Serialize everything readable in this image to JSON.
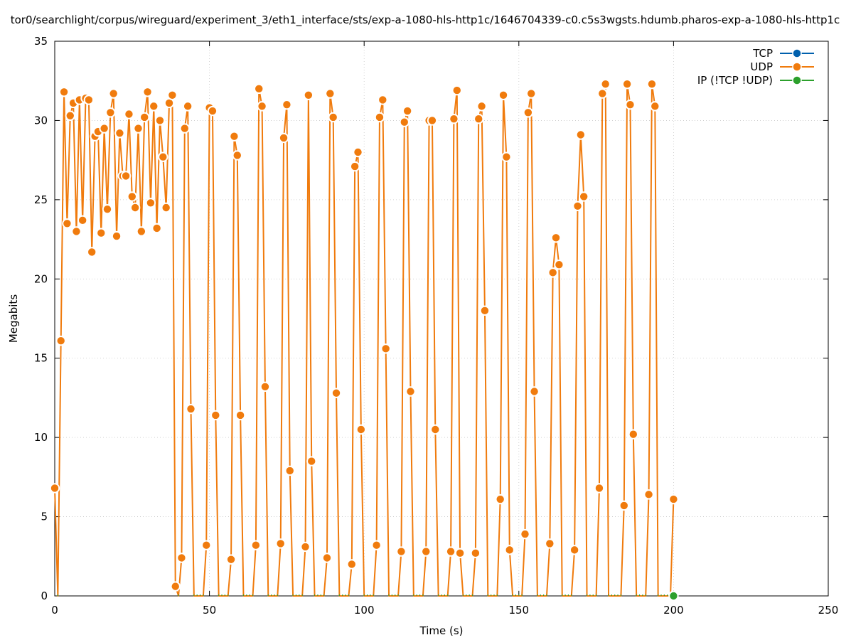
{
  "chart_data": {
    "type": "line",
    "title": "tor0/searchlight/corpus/wireguard/experiment_3/eth1_interface/sts/exp-a-1080-hls-http1c/1646704339-c0.c5s3wgsts.hdumb.pharos-exp-a-1080-hls-http1c",
    "xlabel": "Time (s)",
    "ylabel": "Megabits",
    "xlim": [
      0,
      250
    ],
    "ylim": [
      0,
      35
    ],
    "xticks": [
      0,
      50,
      100,
      150,
      200,
      250
    ],
    "yticks": [
      0,
      5,
      10,
      15,
      20,
      25,
      30,
      35
    ],
    "grid": true,
    "legend_position": "top-right",
    "series": [
      {
        "name": "TCP",
        "color": "#0060ad",
        "points": []
      },
      {
        "name": "UDP",
        "color": "#f07b0d",
        "points": [
          [
            0,
            6.8
          ],
          [
            1,
            0
          ],
          [
            2,
            16.1
          ],
          [
            3,
            31.8
          ],
          [
            4,
            23.5
          ],
          [
            5,
            30.3
          ],
          [
            6,
            31.1
          ],
          [
            7,
            23
          ],
          [
            8,
            31.3
          ],
          [
            9,
            23.7
          ],
          [
            10,
            31.4
          ],
          [
            11,
            31.3
          ],
          [
            12,
            21.7
          ],
          [
            13,
            29
          ],
          [
            14,
            29.3
          ],
          [
            15,
            22.9
          ],
          [
            16,
            29.5
          ],
          [
            17,
            24.4
          ],
          [
            18,
            30.5
          ],
          [
            19,
            31.7
          ],
          [
            20,
            22.7
          ],
          [
            21,
            29.2
          ],
          [
            22,
            26.5
          ],
          [
            23,
            26.5
          ],
          [
            24,
            30.4
          ],
          [
            25,
            25.2
          ],
          [
            26,
            24.5
          ],
          [
            27,
            29.5
          ],
          [
            28,
            23
          ],
          [
            29,
            30.2
          ],
          [
            30,
            31.8
          ],
          [
            31,
            24.8
          ],
          [
            32,
            30.9
          ],
          [
            33,
            23.2
          ],
          [
            34,
            30
          ],
          [
            35,
            27.7
          ],
          [
            36,
            24.5
          ],
          [
            37,
            31.1
          ],
          [
            38,
            31.6
          ],
          [
            39,
            0.6
          ],
          [
            40,
            0
          ],
          [
            41,
            2.4
          ],
          [
            42,
            29.5
          ],
          [
            43,
            30.9
          ],
          [
            44,
            11.8
          ],
          [
            45,
            0
          ],
          [
            46,
            0
          ],
          [
            47,
            0
          ],
          [
            48,
            0
          ],
          [
            49,
            3.2
          ],
          [
            50,
            30.8
          ],
          [
            51,
            30.6
          ],
          [
            52,
            11.4
          ],
          [
            53,
            0
          ],
          [
            54,
            0
          ],
          [
            55,
            0
          ],
          [
            56,
            0
          ],
          [
            57,
            2.3
          ],
          [
            58,
            29
          ],
          [
            59,
            27.8
          ],
          [
            60,
            11.4
          ],
          [
            61,
            0
          ],
          [
            62,
            0
          ],
          [
            63,
            0
          ],
          [
            64,
            0
          ],
          [
            65,
            3.2
          ],
          [
            66,
            32
          ],
          [
            67,
            30.9
          ],
          [
            68,
            13.2
          ],
          [
            69,
            0
          ],
          [
            70,
            0
          ],
          [
            71,
            0
          ],
          [
            72,
            0
          ],
          [
            73,
            3.3
          ],
          [
            74,
            28.9
          ],
          [
            75,
            31
          ],
          [
            76,
            7.9
          ],
          [
            77,
            0
          ],
          [
            78,
            0
          ],
          [
            79,
            0
          ],
          [
            80,
            0
          ],
          [
            81,
            3.1
          ],
          [
            82,
            31.6
          ],
          [
            83,
            8.5
          ],
          [
            84,
            0
          ],
          [
            85,
            0
          ],
          [
            86,
            0
          ],
          [
            87,
            0
          ],
          [
            88,
            2.4
          ],
          [
            89,
            31.7
          ],
          [
            90,
            30.2
          ],
          [
            91,
            12.8
          ],
          [
            92,
            0
          ],
          [
            93,
            0
          ],
          [
            94,
            0
          ],
          [
            95,
            0
          ],
          [
            96,
            2
          ],
          [
            97,
            27.1
          ],
          [
            98,
            28
          ],
          [
            99,
            10.5
          ],
          [
            100,
            0
          ],
          [
            101,
            0
          ],
          [
            102,
            0
          ],
          [
            103,
            0
          ],
          [
            104,
            3.2
          ],
          [
            105,
            30.2
          ],
          [
            106,
            31.3
          ],
          [
            107,
            15.6
          ],
          [
            108,
            0
          ],
          [
            109,
            0
          ],
          [
            110,
            0
          ],
          [
            111,
            0
          ],
          [
            112,
            2.8
          ],
          [
            113,
            29.9
          ],
          [
            114,
            30.6
          ],
          [
            115,
            12.9
          ],
          [
            116,
            0
          ],
          [
            117,
            0
          ],
          [
            118,
            0
          ],
          [
            119,
            0
          ],
          [
            120,
            2.8
          ],
          [
            121,
            30
          ],
          [
            122,
            30
          ],
          [
            123,
            10.5
          ],
          [
            124,
            0
          ],
          [
            125,
            0
          ],
          [
            126,
            0
          ],
          [
            127,
            0
          ],
          [
            128,
            2.8
          ],
          [
            129,
            30.1
          ],
          [
            130,
            31.9
          ],
          [
            131,
            2.7
          ],
          [
            132,
            0
          ],
          [
            133,
            0
          ],
          [
            134,
            0
          ],
          [
            135,
            0
          ],
          [
            136,
            2.7
          ],
          [
            137,
            30.1
          ],
          [
            138,
            30.9
          ],
          [
            139,
            18
          ],
          [
            140,
            0
          ],
          [
            141,
            0
          ],
          [
            142,
            0
          ],
          [
            143,
            0
          ],
          [
            144,
            6.1
          ],
          [
            145,
            31.6
          ],
          [
            146,
            27.7
          ],
          [
            147,
            2.9
          ],
          [
            148,
            0
          ],
          [
            149,
            0
          ],
          [
            150,
            0
          ],
          [
            151,
            0
          ],
          [
            152,
            3.9
          ],
          [
            153,
            30.5
          ],
          [
            154,
            31.7
          ],
          [
            155,
            12.9
          ],
          [
            156,
            0
          ],
          [
            157,
            0
          ],
          [
            158,
            0
          ],
          [
            159,
            0
          ],
          [
            160,
            3.3
          ],
          [
            161,
            20.4
          ],
          [
            162,
            22.6
          ],
          [
            163,
            20.9
          ],
          [
            164,
            0
          ],
          [
            165,
            0
          ],
          [
            166,
            0
          ],
          [
            167,
            0
          ],
          [
            168,
            2.9
          ],
          [
            169,
            24.6
          ],
          [
            170,
            29.1
          ],
          [
            171,
            25.2
          ],
          [
            172,
            0
          ],
          [
            173,
            0
          ],
          [
            174,
            0
          ],
          [
            175,
            0
          ],
          [
            176,
            6.8
          ],
          [
            177,
            31.7
          ],
          [
            178,
            32.3
          ],
          [
            179,
            0
          ],
          [
            180,
            0
          ],
          [
            181,
            0
          ],
          [
            182,
            0
          ],
          [
            183,
            0
          ],
          [
            184,
            5.7
          ],
          [
            185,
            32.3
          ],
          [
            186,
            31
          ],
          [
            187,
            10.2
          ],
          [
            188,
            0
          ],
          [
            189,
            0
          ],
          [
            190,
            0
          ],
          [
            191,
            0
          ],
          [
            192,
            6.4
          ],
          [
            193,
            32.3
          ],
          [
            194,
            30.9
          ],
          [
            195,
            0
          ],
          [
            196,
            0
          ],
          [
            197,
            0
          ],
          [
            198,
            0
          ],
          [
            199,
            0
          ],
          [
            200,
            6.1
          ]
        ]
      },
      {
        "name": "IP (!TCP  !UDP)",
        "color": "#2ca02c",
        "points": [
          [
            200,
            0
          ]
        ]
      }
    ]
  }
}
